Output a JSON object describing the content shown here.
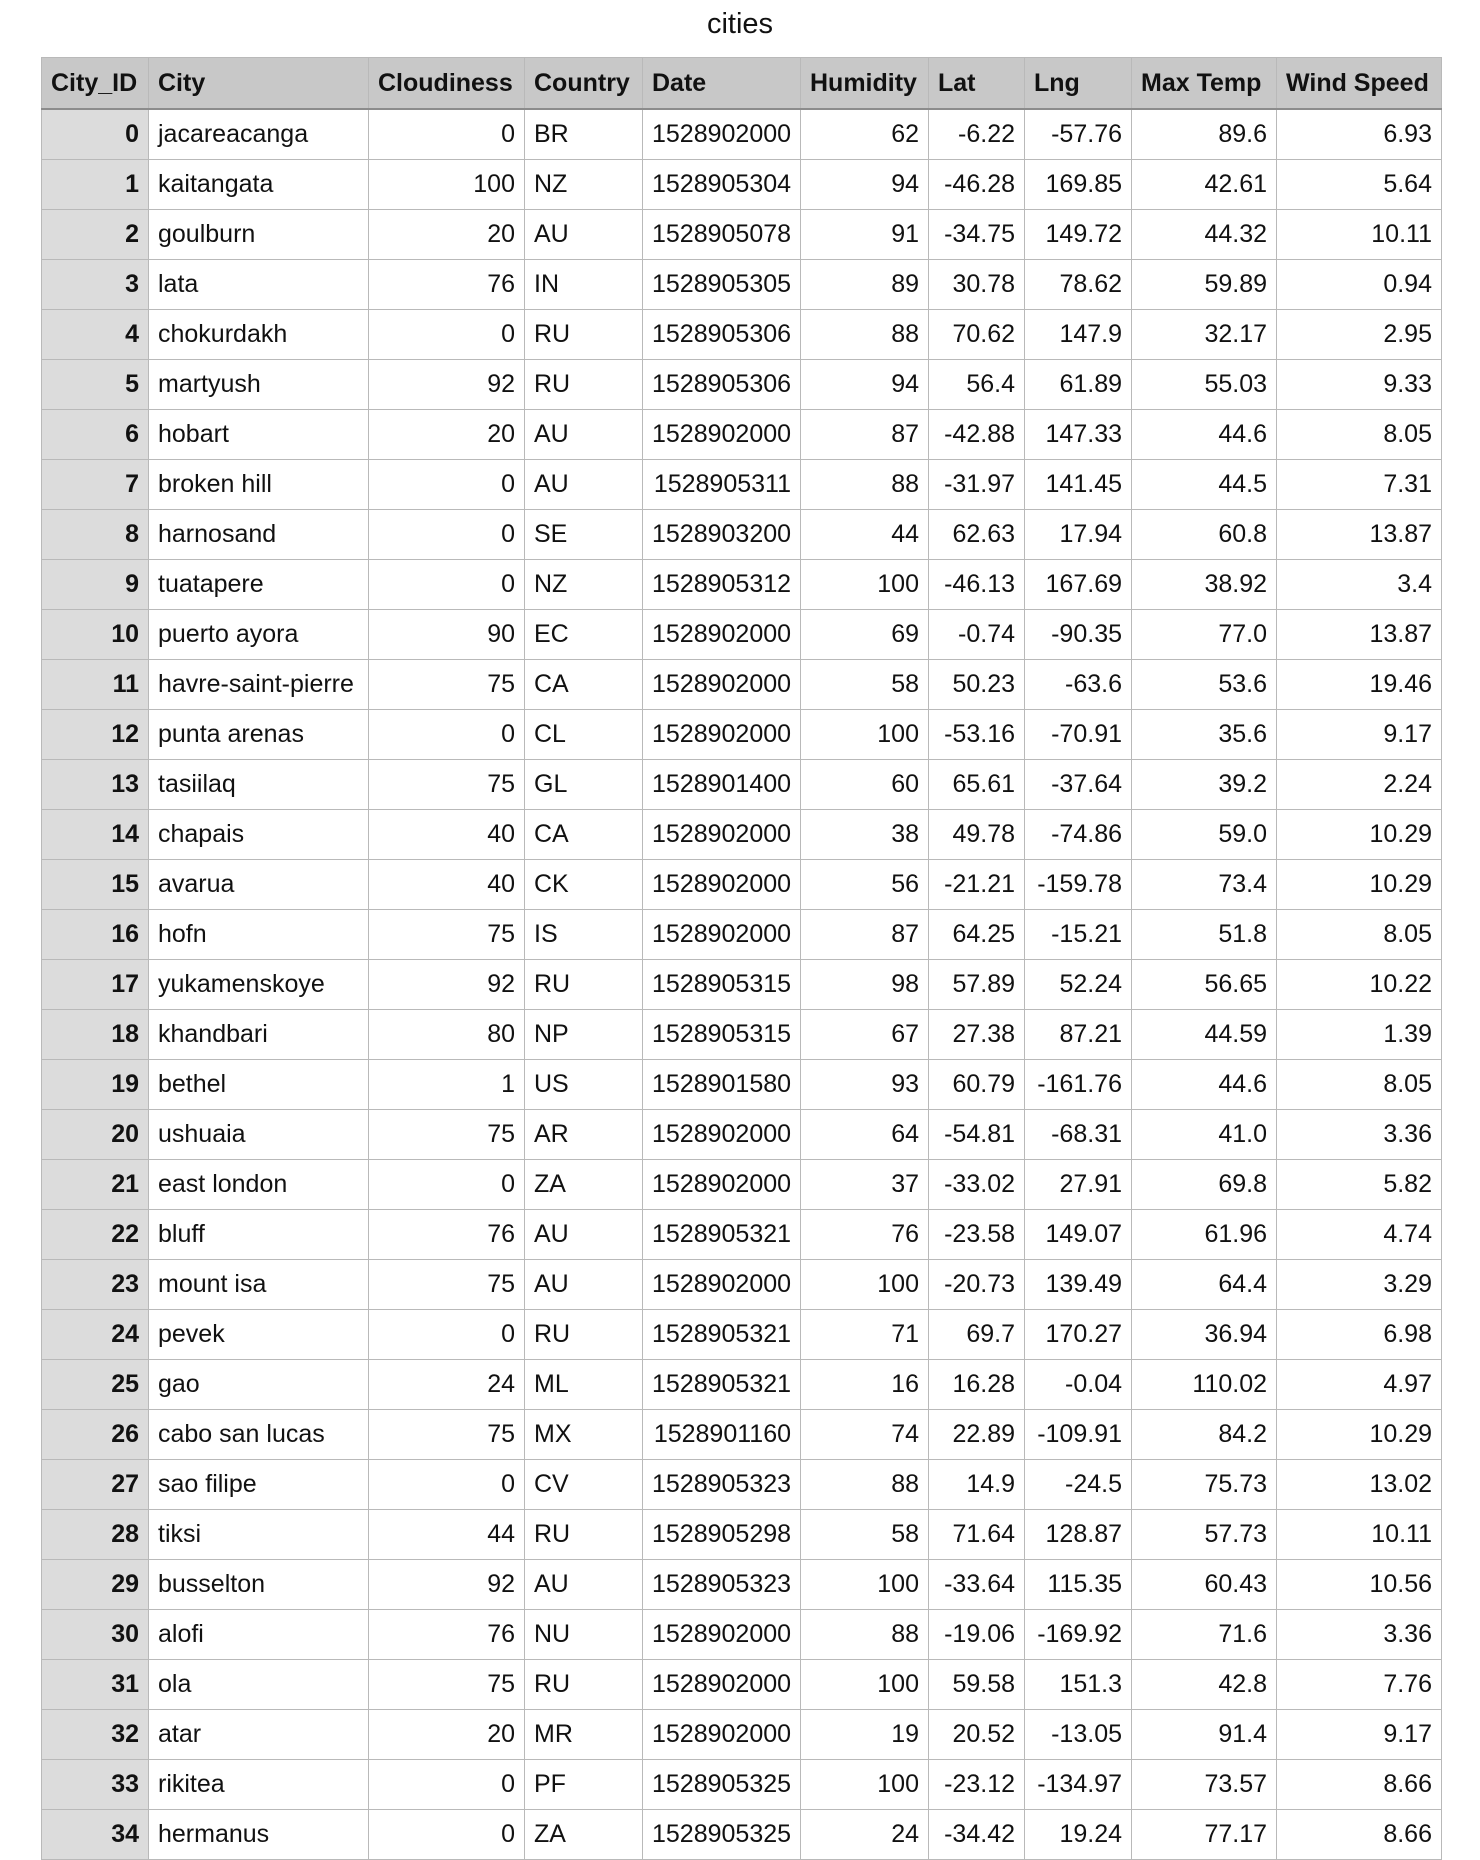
{
  "title": "cities",
  "columns": [
    "City_ID",
    "City",
    "Cloudiness",
    "Country",
    "Date",
    "Humidity",
    "Lat",
    "Lng",
    "Max Temp",
    "Wind Speed"
  ],
  "rows": [
    [
      "0",
      "jacareacanga",
      "0",
      "BR",
      "1528902000",
      "62",
      "-6.22",
      "-57.76",
      "89.6",
      "6.93"
    ],
    [
      "1",
      "kaitangata",
      "100",
      "NZ",
      "1528905304",
      "94",
      "-46.28",
      "169.85",
      "42.61",
      "5.64"
    ],
    [
      "2",
      "goulburn",
      "20",
      "AU",
      "1528905078",
      "91",
      "-34.75",
      "149.72",
      "44.32",
      "10.11"
    ],
    [
      "3",
      "lata",
      "76",
      "IN",
      "1528905305",
      "89",
      "30.78",
      "78.62",
      "59.89",
      "0.94"
    ],
    [
      "4",
      "chokurdakh",
      "0",
      "RU",
      "1528905306",
      "88",
      "70.62",
      "147.9",
      "32.17",
      "2.95"
    ],
    [
      "5",
      "martyush",
      "92",
      "RU",
      "1528905306",
      "94",
      "56.4",
      "61.89",
      "55.03",
      "9.33"
    ],
    [
      "6",
      "hobart",
      "20",
      "AU",
      "1528902000",
      "87",
      "-42.88",
      "147.33",
      "44.6",
      "8.05"
    ],
    [
      "7",
      "broken hill",
      "0",
      "AU",
      "1528905311",
      "88",
      "-31.97",
      "141.45",
      "44.5",
      "7.31"
    ],
    [
      "8",
      "harnosand",
      "0",
      "SE",
      "1528903200",
      "44",
      "62.63",
      "17.94",
      "60.8",
      "13.87"
    ],
    [
      "9",
      "tuatapere",
      "0",
      "NZ",
      "1528905312",
      "100",
      "-46.13",
      "167.69",
      "38.92",
      "3.4"
    ],
    [
      "10",
      "puerto ayora",
      "90",
      "EC",
      "1528902000",
      "69",
      "-0.74",
      "-90.35",
      "77.0",
      "13.87"
    ],
    [
      "11",
      "havre-saint-pierre",
      "75",
      "CA",
      "1528902000",
      "58",
      "50.23",
      "-63.6",
      "53.6",
      "19.46"
    ],
    [
      "12",
      "punta arenas",
      "0",
      "CL",
      "1528902000",
      "100",
      "-53.16",
      "-70.91",
      "35.6",
      "9.17"
    ],
    [
      "13",
      "tasiilaq",
      "75",
      "GL",
      "1528901400",
      "60",
      "65.61",
      "-37.64",
      "39.2",
      "2.24"
    ],
    [
      "14",
      "chapais",
      "40",
      "CA",
      "1528902000",
      "38",
      "49.78",
      "-74.86",
      "59.0",
      "10.29"
    ],
    [
      "15",
      "avarua",
      "40",
      "CK",
      "1528902000",
      "56",
      "-21.21",
      "-159.78",
      "73.4",
      "10.29"
    ],
    [
      "16",
      "hofn",
      "75",
      "IS",
      "1528902000",
      "87",
      "64.25",
      "-15.21",
      "51.8",
      "8.05"
    ],
    [
      "17",
      "yukamenskoye",
      "92",
      "RU",
      "1528905315",
      "98",
      "57.89",
      "52.24",
      "56.65",
      "10.22"
    ],
    [
      "18",
      "khandbari",
      "80",
      "NP",
      "1528905315",
      "67",
      "27.38",
      "87.21",
      "44.59",
      "1.39"
    ],
    [
      "19",
      "bethel",
      "1",
      "US",
      "1528901580",
      "93",
      "60.79",
      "-161.76",
      "44.6",
      "8.05"
    ],
    [
      "20",
      "ushuaia",
      "75",
      "AR",
      "1528902000",
      "64",
      "-54.81",
      "-68.31",
      "41.0",
      "3.36"
    ],
    [
      "21",
      "east london",
      "0",
      "ZA",
      "1528902000",
      "37",
      "-33.02",
      "27.91",
      "69.8",
      "5.82"
    ],
    [
      "22",
      "bluff",
      "76",
      "AU",
      "1528905321",
      "76",
      "-23.58",
      "149.07",
      "61.96",
      "4.74"
    ],
    [
      "23",
      "mount isa",
      "75",
      "AU",
      "1528902000",
      "100",
      "-20.73",
      "139.49",
      "64.4",
      "3.29"
    ],
    [
      "24",
      "pevek",
      "0",
      "RU",
      "1528905321",
      "71",
      "69.7",
      "170.27",
      "36.94",
      "6.98"
    ],
    [
      "25",
      "gao",
      "24",
      "ML",
      "1528905321",
      "16",
      "16.28",
      "-0.04",
      "110.02",
      "4.97"
    ],
    [
      "26",
      "cabo san lucas",
      "75",
      "MX",
      "1528901160",
      "74",
      "22.89",
      "-109.91",
      "84.2",
      "10.29"
    ],
    [
      "27",
      "sao filipe",
      "0",
      "CV",
      "1528905323",
      "88",
      "14.9",
      "-24.5",
      "75.73",
      "13.02"
    ],
    [
      "28",
      "tiksi",
      "44",
      "RU",
      "1528905298",
      "58",
      "71.64",
      "128.87",
      "57.73",
      "10.11"
    ],
    [
      "29",
      "busselton",
      "92",
      "AU",
      "1528905323",
      "100",
      "-33.64",
      "115.35",
      "60.43",
      "10.56"
    ],
    [
      "30",
      "alofi",
      "76",
      "NU",
      "1528902000",
      "88",
      "-19.06",
      "-169.92",
      "71.6",
      "3.36"
    ],
    [
      "31",
      "ola",
      "75",
      "RU",
      "1528902000",
      "100",
      "59.58",
      "151.3",
      "42.8",
      "7.76"
    ],
    [
      "32",
      "atar",
      "20",
      "MR",
      "1528902000",
      "19",
      "20.52",
      "-13.05",
      "91.4",
      "9.17"
    ],
    [
      "33",
      "rikitea",
      "0",
      "PF",
      "1528905325",
      "100",
      "-23.12",
      "-134.97",
      "73.57",
      "8.66"
    ],
    [
      "34",
      "hermanus",
      "0",
      "ZA",
      "1528905325",
      "24",
      "-34.42",
      "19.24",
      "77.17",
      "8.66"
    ]
  ]
}
